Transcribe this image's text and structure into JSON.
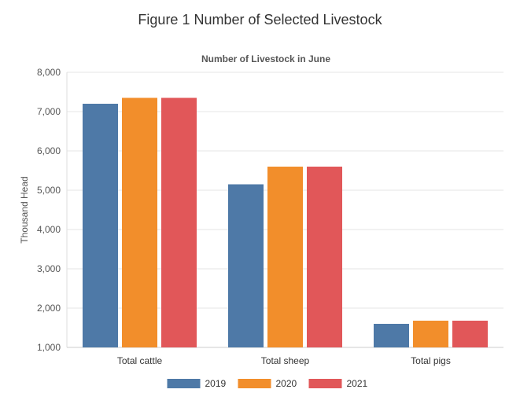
{
  "figure_title": "Figure 1 Number of Selected Livestock",
  "colors": {
    "2019": "#4e79a7",
    "2020": "#f28e2b",
    "2021": "#e15759"
  },
  "chart_data": {
    "type": "bar",
    "title": "Number of Livestock in June",
    "xlabel": "",
    "ylabel": "Thousand Head",
    "ylim": [
      1000,
      8000
    ],
    "yticks": [
      1000,
      2000,
      3000,
      4000,
      5000,
      6000,
      7000,
      8000
    ],
    "ytick_labels": [
      "1,000",
      "2,000",
      "3,000",
      "4,000",
      "5,000",
      "6,000",
      "7,000",
      "8,000"
    ],
    "categories": [
      "Total cattle",
      "Total sheep",
      "Total pigs"
    ],
    "series": [
      {
        "name": "2019",
        "color": "#4e79a7",
        "values": [
          7200,
          5150,
          1600
        ]
      },
      {
        "name": "2020",
        "color": "#f28e2b",
        "values": [
          7350,
          5600,
          1680
        ]
      },
      {
        "name": "2021",
        "color": "#e15759",
        "values": [
          7350,
          5600,
          1680
        ]
      }
    ],
    "grid": true,
    "legend_position": "bottom-center"
  }
}
